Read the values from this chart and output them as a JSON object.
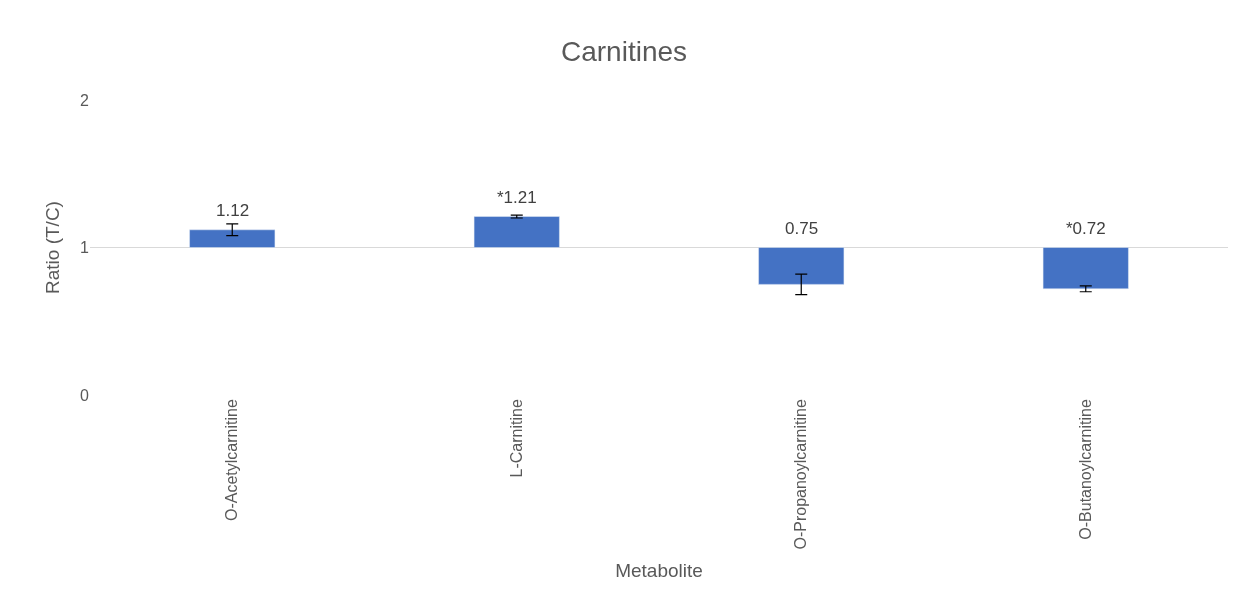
{
  "chart_data": {
    "type": "bar",
    "title": "Carnitines",
    "xlabel": "Metabolite",
    "ylabel": "Ratio (T/C)",
    "categories": [
      "O-Acetylcarnitine",
      "L-Carnitine",
      "O-Propanoylcarnitine",
      "O-Butanoylcarnitine"
    ],
    "base": [
      1,
      1,
      1,
      1
    ],
    "values": [
      0.12,
      0.21,
      -0.25,
      -0.28
    ],
    "value_labels": [
      "1.12",
      "*1.21",
      "0.75",
      "*0.72"
    ],
    "errors": [
      0.04,
      0.01,
      0.07,
      0.02
    ],
    "color": "#4472c4",
    "ylim": [
      0,
      2
    ],
    "yticks": [
      0,
      1,
      2
    ],
    "grid": "y",
    "legend": false
  }
}
